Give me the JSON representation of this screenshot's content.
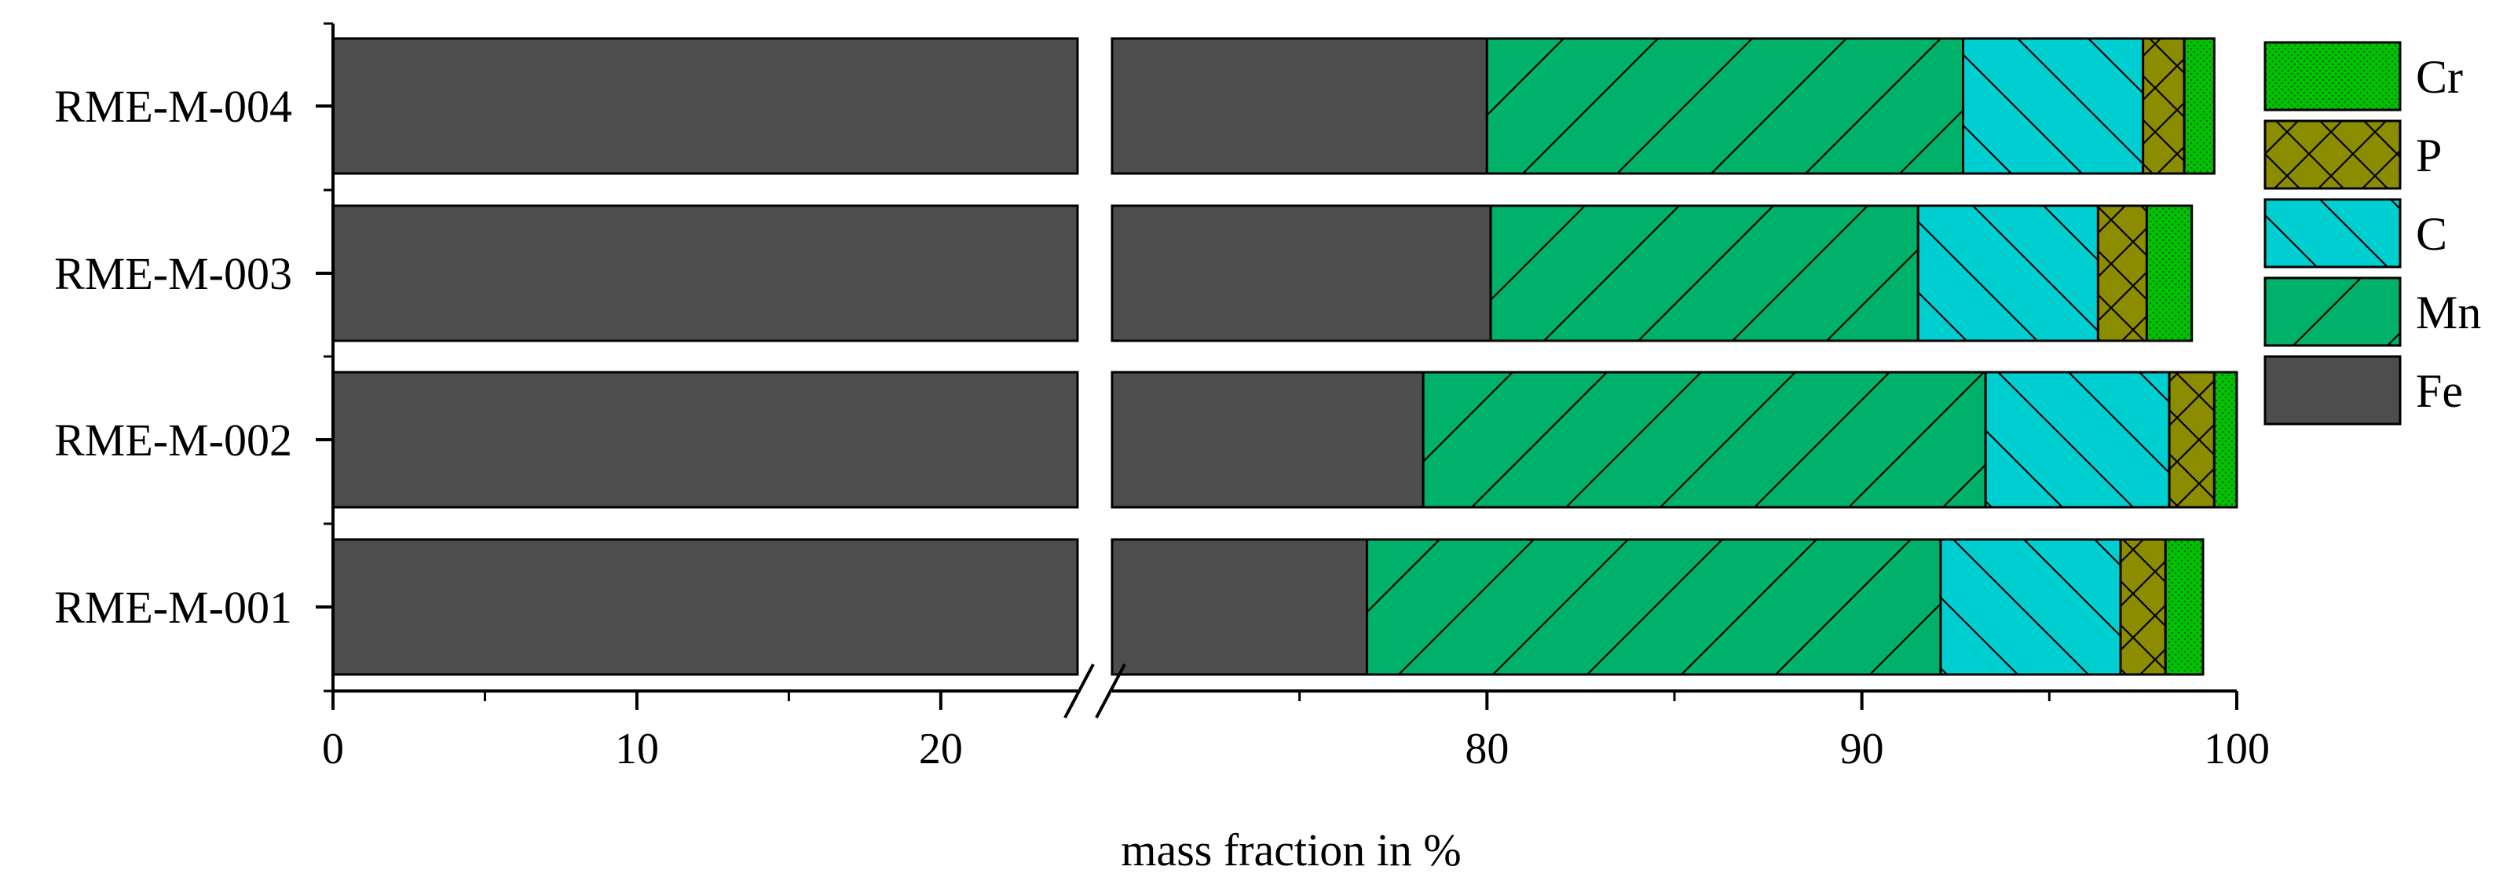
{
  "chart_data": {
    "type": "bar",
    "orientation": "horizontal",
    "stacked": true,
    "title": "",
    "xlabel": "mass fraction in %",
    "ylabel": "",
    "axis_break": {
      "from": 24.5,
      "to": 70
    },
    "xlim": [
      0,
      100
    ],
    "xticks": [
      0,
      10,
      20,
      80,
      90,
      100
    ],
    "categories": [
      "RME-M-001",
      "RME-M-002",
      "RME-M-003",
      "RME-M-004"
    ],
    "series": [
      {
        "name": "Fe",
        "values": [
          76.8,
          78.3,
          80.1,
          80.0
        ]
      },
      {
        "name": "Mn",
        "values": [
          15.3,
          15.0,
          11.4,
          12.7
        ]
      },
      {
        "name": "C",
        "values": [
          4.8,
          4.9,
          4.8,
          4.8
        ]
      },
      {
        "name": "P",
        "values": [
          1.2,
          1.2,
          1.3,
          1.1
        ]
      },
      {
        "name": "Cr",
        "values": [
          1.0,
          0.6,
          1.2,
          0.8
        ]
      }
    ],
    "legend_order": [
      "Cr",
      "P",
      "C",
      "Mn",
      "Fe"
    ],
    "legend_position": "right",
    "colors": {
      "Fe": "#4d4d4d",
      "Mn": "#00b169",
      "C": "#00cfd1",
      "P": "#8c8c00",
      "Cr": "#00c400"
    },
    "patterns": {
      "Fe": "none",
      "Mn": "diag-wide",
      "C": "back-diag",
      "P": "cross",
      "Cr": "dots"
    }
  }
}
